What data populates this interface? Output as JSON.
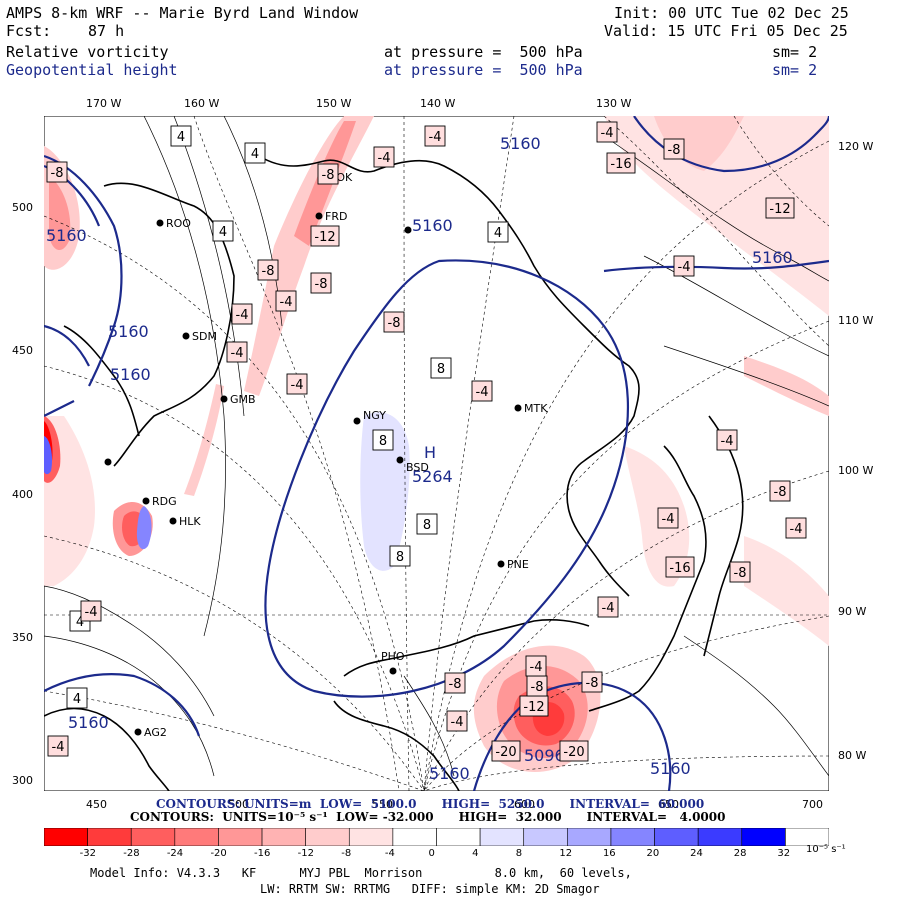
{
  "header": {
    "title": "AMPS 8-km WRF -- Marie Byrd Land Window",
    "fcst_label": "Fcst:",
    "fcst_value": "87 h",
    "init": "Init: 00 UTC Tue 02 Dec 25",
    "valid": "Valid: 15 UTC Fri 05 Dec 25",
    "field1": "Relative vorticity",
    "field1_level": "at pressure =  500 hPa",
    "field1_sm": "sm= 2",
    "field2": "Geopotential height",
    "field2_level": "at pressure =  500 hPa",
    "field2_sm": "sm= 2"
  },
  "axes": {
    "top": [
      "170 W",
      "160 W",
      "150 W",
      "140 W",
      "130 W"
    ],
    "right": [
      "120 W",
      "110 W",
      "100 W",
      "90 W",
      "80 W"
    ],
    "left": [
      "500",
      "450",
      "400",
      "350",
      "300"
    ],
    "bottom": [
      "450",
      "500",
      "550",
      "600",
      "650",
      "700"
    ]
  },
  "stations": [
    "FOK",
    "FRD",
    "ROO",
    "SDM",
    "GMB",
    "NGY",
    "MTK",
    "BSD",
    "RDG",
    "HLK",
    "PNE",
    "PHO",
    "AG2"
  ],
  "map_labels": {
    "height_contours": [
      "5160",
      "5160",
      "5160",
      "5160",
      "5160",
      "5160",
      "5160",
      "5160",
      "5160"
    ],
    "high_mark": "H",
    "high_value": "5264",
    "low_value": "5096"
  },
  "vort_boxes": [
    "4",
    "4",
    "4",
    "4",
    "-4",
    "-4",
    "-4",
    "-8",
    "-16",
    "-8",
    "-12",
    "-4",
    "-8",
    "-8",
    "-4",
    "-8",
    "-12",
    "-8",
    "-4",
    "-4",
    "-4",
    "-4",
    "8",
    "8",
    "8",
    "8",
    "-4",
    "-4",
    "-8",
    "-8",
    "-4",
    "-4",
    "-16",
    "-12",
    "-8",
    "-8",
    "-20",
    "-20",
    "-4",
    "-8",
    "-4",
    "4",
    "4",
    "-4",
    "-4"
  ],
  "contours_footer": {
    "line1": "CONTOURS: UNITS=m  LOW=  5100.0      HIGH=  5250.0      INTERVAL=  60.000",
    "line2": "CONTOURS:  UNITS=10⁻⁵ s⁻¹  LOW= -32.000      HIGH=  32.000      INTERVAL=   4.0000"
  },
  "colorbar": {
    "labels": [
      "-32",
      "-28",
      "-24",
      "-20",
      "-16",
      "-12",
      "-8",
      "-4",
      "0",
      "4",
      "8",
      "12",
      "16",
      "20",
      "24",
      "28",
      "32"
    ],
    "units": "10⁻⁵ s⁻¹",
    "colors": [
      "#ff0000",
      "#ff3b3b",
      "#ff5e5e",
      "#ff7a7a",
      "#ff9797",
      "#ffb3b3",
      "#ffcccc",
      "#ffe3e3",
      "#ffffff",
      "#ffffff",
      "#e3e3ff",
      "#c8c8ff",
      "#a8a8ff",
      "#8585ff",
      "#5e5eff",
      "#3b3bff",
      "#0000ff"
    ]
  },
  "model_info": {
    "line1": "Model Info: V4.3.3   KF      MYJ PBL  Morrison          8.0 km,  60 levels,",
    "line2": "LW: RRTM SW: RRTMG   DIFF: simple KM: 2D Smagor"
  }
}
